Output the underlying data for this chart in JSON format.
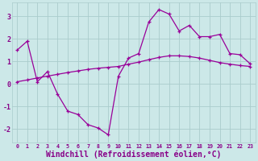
{
  "bg_color": "#cce8e8",
  "grid_color": "#aacccc",
  "line_color": "#990099",
  "xlabel": "Windchill (Refroidissement éolien,°C)",
  "xlabel_color": "#880088",
  "xlabel_fontsize": 7,
  "tick_color": "#880088",
  "tick_fontsize": 6,
  "ylim": [
    -2.6,
    3.6
  ],
  "yticks": [
    -2,
    -1,
    0,
    1,
    2,
    3
  ],
  "xlim": [
    -0.5,
    23.5
  ],
  "xticks": [
    0,
    1,
    2,
    3,
    4,
    5,
    6,
    7,
    8,
    9,
    10,
    11,
    12,
    13,
    14,
    15,
    16,
    17,
    18,
    19,
    20,
    21,
    22,
    23
  ],
  "line1_x": [
    0,
    1,
    2,
    3,
    4,
    5,
    6,
    7,
    8,
    9,
    10,
    11,
    12,
    13,
    14,
    15,
    16,
    17,
    18,
    19,
    20,
    21,
    22,
    23
  ],
  "line1_y": [
    1.5,
    1.9,
    0.1,
    0.55,
    -0.45,
    -1.2,
    -1.35,
    -1.8,
    -1.95,
    -2.25,
    0.35,
    1.15,
    1.35,
    2.75,
    3.3,
    3.1,
    2.35,
    2.6,
    2.1,
    2.1,
    2.2,
    1.35,
    1.3,
    0.9
  ],
  "line2_x": [
    0,
    1,
    2,
    3,
    4,
    5,
    6,
    7,
    8,
    9,
    10,
    11,
    12,
    13,
    14,
    15,
    16,
    17,
    18,
    19,
    20,
    21,
    22,
    23
  ],
  "line2_y": [
    0.1,
    0.18,
    0.27,
    0.35,
    0.43,
    0.51,
    0.58,
    0.65,
    0.7,
    0.74,
    0.78,
    0.88,
    0.97,
    1.08,
    1.18,
    1.25,
    1.25,
    1.22,
    1.15,
    1.05,
    0.95,
    0.88,
    0.82,
    0.78
  ]
}
